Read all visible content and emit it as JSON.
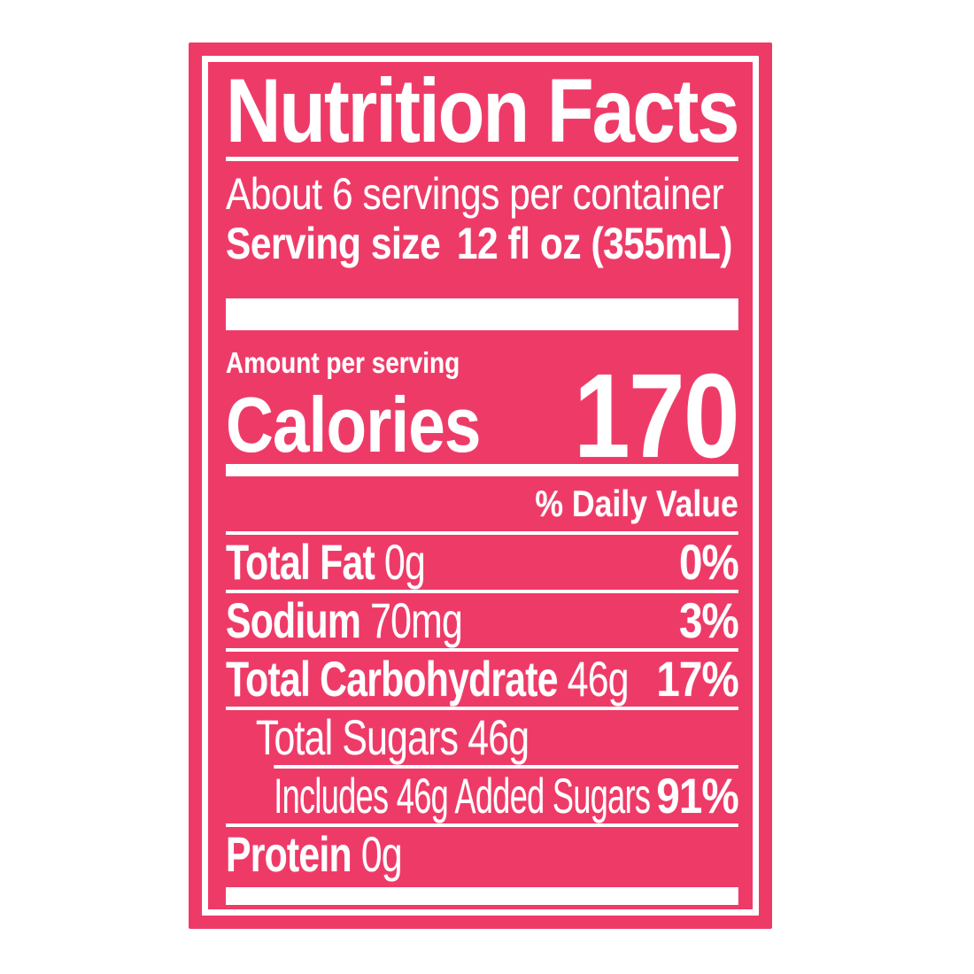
{
  "colors": {
    "label_pink": "#ee3a67",
    "text_white": "#ffffff",
    "page_background": "#ffffff"
  },
  "label": {
    "title": "Nutrition Facts",
    "servings_per_container": "About 6 servings per container",
    "serving_size": {
      "label": "Serving size",
      "value": "12 fl oz (355mL)"
    },
    "amount_per_serving": "Amount per serving",
    "calories": {
      "label": "Calories",
      "value": "170"
    },
    "daily_value_header": "% Daily Value",
    "nutrients": [
      {
        "name": "Total Fat",
        "amount": "0g",
        "daily_value": "0%",
        "indent": 0,
        "name_bold": true,
        "separator_above": "full"
      },
      {
        "name": "Sodium",
        "amount": "70mg",
        "daily_value": "3%",
        "indent": 0,
        "name_bold": true,
        "separator_above": "full"
      },
      {
        "name": "Total Carbohydrate",
        "amount": "46g",
        "daily_value": "17%",
        "indent": 0,
        "name_bold": true,
        "separator_above": "full"
      },
      {
        "name": "Total Sugars",
        "amount": "46g",
        "daily_value": "",
        "indent": 1,
        "name_bold": false,
        "separator_above": "full"
      },
      {
        "name": "Includes 46g Added Sugars",
        "amount": "",
        "daily_value": "91%",
        "indent": 2,
        "name_bold": false,
        "separator_above": "indented"
      },
      {
        "name": "Protein",
        "amount": "0g",
        "daily_value": "",
        "indent": 0,
        "name_bold": true,
        "separator_above": "full"
      }
    ]
  }
}
